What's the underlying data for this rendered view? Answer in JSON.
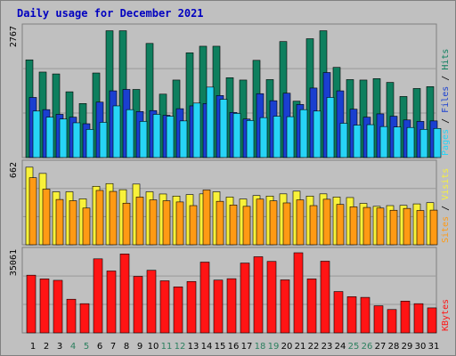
{
  "title": "Daily usage for December 2021",
  "colors": {
    "background": "#c0c0c0",
    "title": "#0000c0",
    "hits": "#0e7f5e",
    "files": "#1a3fd0",
    "pages": "#27d4f6",
    "visits": "#f8f13a",
    "sites": "#ff9a14",
    "kbytes": "#ff1414",
    "weekend_label": "#2b7f5e",
    "weekday_label": "#000000"
  },
  "chart_data": [
    {
      "type": "bar",
      "ymax_label": "2767",
      "legend": [
        "Pages",
        "Files",
        "Hits"
      ],
      "categories": [
        "1",
        "2",
        "3",
        "4",
        "5",
        "6",
        "7",
        "8",
        "9",
        "10",
        "11",
        "12",
        "13",
        "14",
        "15",
        "16",
        "17",
        "18",
        "19",
        "20",
        "21",
        "22",
        "23",
        "24",
        "25",
        "26",
        "27",
        "28",
        "29",
        "30",
        "31"
      ],
      "weekend_days": [
        "4",
        "5",
        "11",
        "12",
        "18",
        "19",
        "25",
        "26"
      ],
      "ylim": [
        0,
        2767
      ],
      "series": [
        {
          "name": "Hits",
          "values": [
            2080,
            1820,
            1780,
            1400,
            1150,
            1800,
            2700,
            2700,
            1450,
            2430,
            1350,
            1650,
            2230,
            2370,
            2370,
            1700,
            1650,
            2070,
            1660,
            2470,
            1200,
            2530,
            2700,
            1920,
            1660,
            1650,
            1680,
            1600,
            1300,
            1470,
            1510
          ]
        },
        {
          "name": "Files",
          "values": [
            1280,
            1020,
            920,
            860,
            720,
            1180,
            1420,
            1450,
            980,
            1000,
            900,
            1040,
            1100,
            1150,
            1320,
            960,
            820,
            1360,
            1210,
            1370,
            1130,
            1480,
            1810,
            1420,
            1030,
            860,
            930,
            880,
            800,
            770,
            780
          ]
        },
        {
          "name": "Pages",
          "values": [
            990,
            860,
            820,
            740,
            600,
            750,
            1100,
            1020,
            770,
            920,
            880,
            780,
            1160,
            1500,
            1240,
            940,
            790,
            850,
            880,
            870,
            1020,
            990,
            1280,
            730,
            690,
            700,
            660,
            650,
            640,
            600,
            620
          ]
        }
      ]
    },
    {
      "type": "bar",
      "ymax_label": "662",
      "legend": [
        "Sites",
        "Visits"
      ],
      "categories": [
        "1",
        "2",
        "3",
        "4",
        "5",
        "6",
        "7",
        "8",
        "9",
        "10",
        "11",
        "12",
        "13",
        "14",
        "15",
        "16",
        "17",
        "18",
        "19",
        "20",
        "21",
        "22",
        "23",
        "24",
        "25",
        "26",
        "27",
        "28",
        "29",
        "30",
        "31"
      ],
      "ylim": [
        0,
        662
      ],
      "series": [
        {
          "name": "Visits",
          "values": [
            634,
            583,
            433,
            433,
            375,
            478,
            500,
            450,
            496,
            433,
            415,
            398,
            410,
            416,
            433,
            390,
            374,
            402,
            398,
            416,
            438,
            398,
            416,
            390,
            386,
            338,
            314,
            320,
            322,
            334,
            344
          ]
        },
        {
          "name": "Sites",
          "values": [
            548,
            455,
            370,
            360,
            300,
            444,
            436,
            340,
            390,
            367,
            360,
            350,
            320,
            448,
            355,
            325,
            314,
            373,
            359,
            342,
            367,
            320,
            372,
            330,
            310,
            305,
            300,
            282,
            297,
            280,
            283
          ]
        }
      ]
    },
    {
      "type": "bar",
      "ymax_label": "35061",
      "legend": [
        "KBytes"
      ],
      "categories": [
        "1",
        "2",
        "3",
        "4",
        "5",
        "6",
        "7",
        "8",
        "9",
        "10",
        "11",
        "12",
        "13",
        "14",
        "15",
        "16",
        "17",
        "18",
        "19",
        "20",
        "21",
        "22",
        "23",
        "24",
        "25",
        "26",
        "27",
        "28",
        "29",
        "30",
        "31"
      ],
      "ylim": [
        0,
        35061
      ],
      "series": [
        {
          "name": "KBytes",
          "values": [
            24700,
            23100,
            22500,
            14400,
            12500,
            31700,
            26500,
            33800,
            24200,
            26800,
            22300,
            19700,
            22000,
            30300,
            22600,
            23200,
            29900,
            32600,
            30600,
            22700,
            34300,
            23100,
            30700,
            17700,
            15500,
            15200,
            11600,
            10000,
            13600,
            12500,
            10700
          ]
        }
      ]
    }
  ]
}
